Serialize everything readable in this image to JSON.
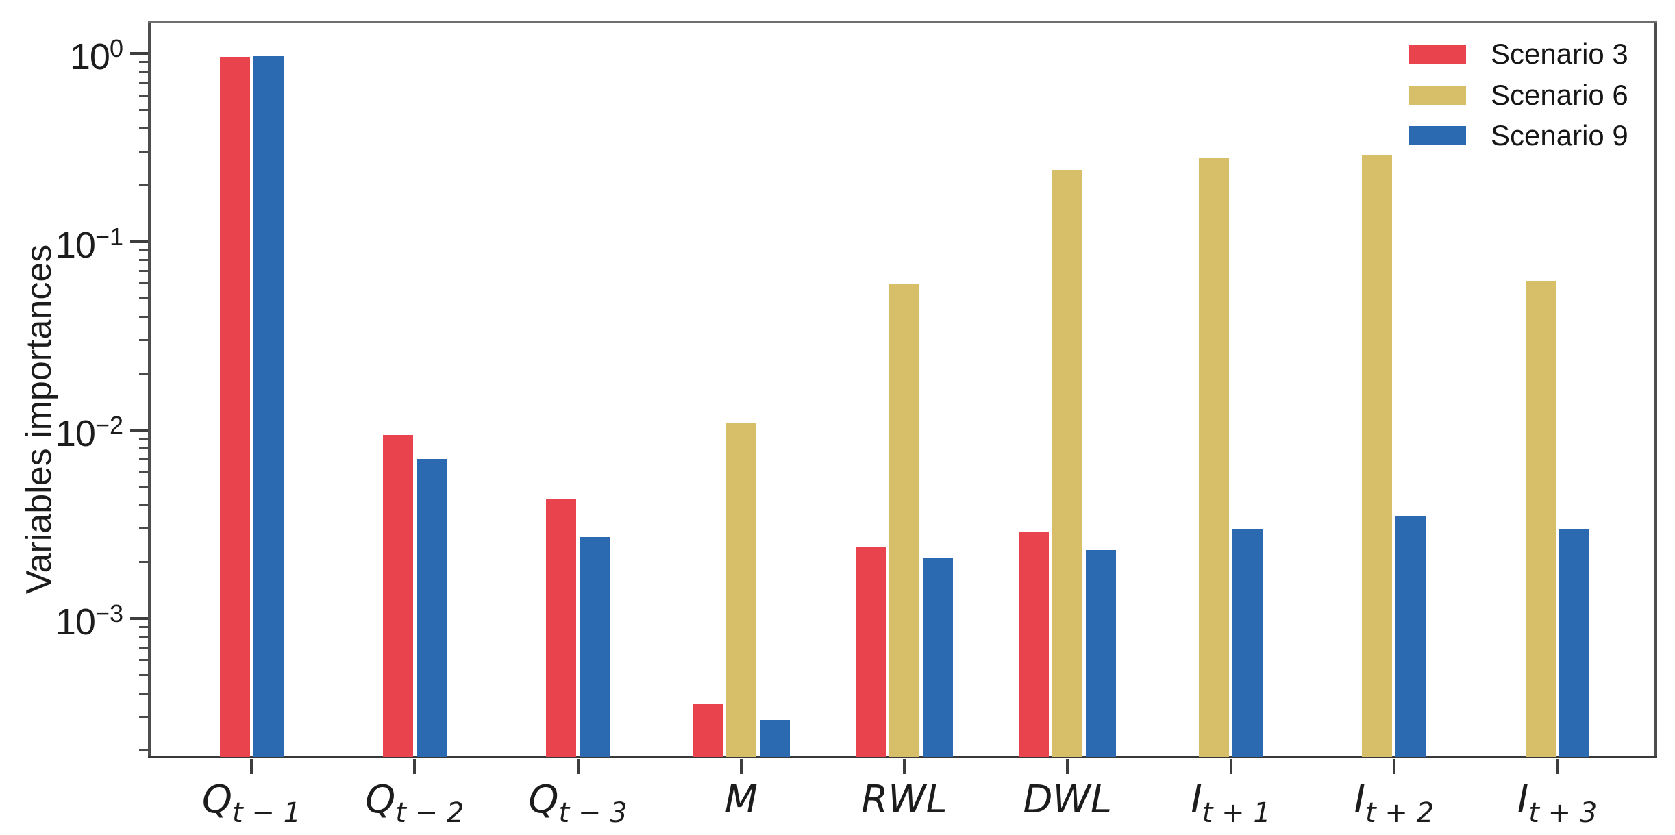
{
  "figure": {
    "ylabel": "Variables importances",
    "background": "#ffffff",
    "spine_color": "#4e4e4e",
    "text_color": "#1c1c1c"
  },
  "axes": {
    "y_tick_base": "10",
    "y_tick_exponent_labels": [
      "0",
      "−1",
      "−2",
      "−3"
    ],
    "x_categories_display": [
      {
        "base": "Q",
        "sub": "t − 1"
      },
      {
        "base": "Q",
        "sub": "t − 2"
      },
      {
        "base": "Q",
        "sub": "t − 3"
      },
      {
        "base": "M",
        "sub": ""
      },
      {
        "base": "RWL",
        "sub": ""
      },
      {
        "base": "DWL",
        "sub": ""
      },
      {
        "base": "I",
        "sub": "t + 1"
      },
      {
        "base": "I",
        "sub": "t + 2"
      },
      {
        "base": "I",
        "sub": "t + 3"
      }
    ]
  },
  "legend": {
    "items": [
      {
        "label": "Scenario 3",
        "color": "#e9444d"
      },
      {
        "label": "Scenario 6",
        "color": "#d7bf6a"
      },
      {
        "label": "Scenario 9",
        "color": "#2b6ab1"
      }
    ],
    "position": "upper right",
    "frame": false
  },
  "chart_data": {
    "type": "bar",
    "yscale": "log",
    "title": "",
    "xlabel": "",
    "ylabel": "Variables importances",
    "ylim": [
      0.000184,
      1.47
    ],
    "grid": false,
    "categories": [
      "Q_t-1",
      "Q_t-2",
      "Q_t-3",
      "M",
      "RWL",
      "DWL",
      "I_t+1",
      "I_t+2",
      "I_t+3"
    ],
    "ytick_exponents": [
      0,
      -1,
      -2,
      -3
    ],
    "series": [
      {
        "name": "Scenario 3",
        "color": "#e9444d",
        "values": [
          0.96,
          0.0094,
          0.0043,
          0.00035,
          0.0024,
          0.0029,
          null,
          null,
          null
        ]
      },
      {
        "name": "Scenario 6",
        "color": "#d7bf6a",
        "values": [
          null,
          null,
          null,
          0.011,
          0.06,
          0.24,
          0.28,
          0.29,
          0.062
        ]
      },
      {
        "name": "Scenario 9",
        "color": "#2b6ab1",
        "values": [
          0.97,
          0.007,
          0.0027,
          0.00029,
          0.0021,
          0.0023,
          0.003,
          0.0035,
          0.003
        ]
      }
    ]
  }
}
